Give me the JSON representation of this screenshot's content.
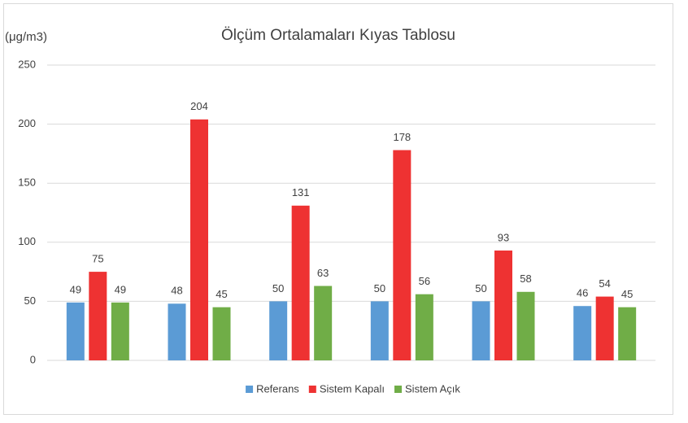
{
  "chart_data": {
    "type": "bar",
    "title": "Ölçüm Ortalamaları Kıyas Tablosu",
    "y_label": "(μg/m3)",
    "categories": [
      null,
      null,
      null,
      null,
      null,
      null
    ],
    "series": [
      {
        "name": "Referans",
        "color": "#5b9bd5",
        "values": [
          49,
          48,
          50,
          50,
          50,
          46
        ]
      },
      {
        "name": "Sistem Kapalı",
        "color": "#ee3232",
        "values": [
          75,
          204,
          131,
          178,
          93,
          54
        ]
      },
      {
        "name": "Sistem Açık",
        "color": "#70ad47",
        "values": [
          49,
          45,
          63,
          56,
          58,
          45
        ]
      }
    ],
    "ylim": [
      0,
      250
    ],
    "yticks": [
      0,
      50,
      100,
      150,
      200,
      250
    ],
    "grid": true,
    "legend": "bottom"
  }
}
